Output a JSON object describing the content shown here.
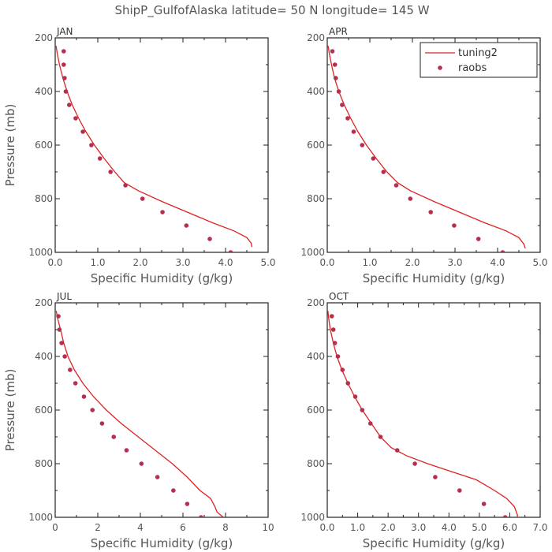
{
  "figure_title": "ShipP_GulfofAlaska   latitude= 50 N longitude= 145 W",
  "colors": {
    "model": "#dd2222",
    "obs": "#b5304f",
    "axis": "#222222",
    "text": "#555555"
  },
  "legend": {
    "line_label": "tuning2",
    "marker_label": "raobs",
    "placement": "top-right of APR panel"
  },
  "chart_data": [
    {
      "type": "line",
      "panel": "JAN",
      "xlabel": "Specific Humidity (g/kg)",
      "ylabel": "Pressure (mb)",
      "xlim": [
        0,
        5
      ],
      "ylim": [
        1000,
        200
      ],
      "y_inverted": true,
      "xticks": [
        0,
        1,
        2,
        3,
        4,
        5
      ],
      "xtick_labels": [
        "0.0",
        "1.0",
        "2.0",
        "3.0",
        "4.0",
        "5.0"
      ],
      "yticks": [
        200,
        400,
        600,
        800,
        1000
      ],
      "ytick_labels": [
        "200",
        "400",
        "600",
        "800",
        "1000"
      ],
      "series": [
        {
          "name": "tuning2",
          "kind": "line",
          "x": [
            0.02,
            0.05,
            0.1,
            0.18,
            0.28,
            0.4,
            0.55,
            0.72,
            0.92,
            1.15,
            1.4,
            1.62,
            1.95,
            2.5,
            3.1,
            3.7,
            4.2,
            4.5,
            4.6,
            4.62
          ],
          "y": [
            230,
            260,
            300,
            350,
            400,
            450,
            500,
            550,
            600,
            650,
            700,
            740,
            770,
            810,
            850,
            890,
            920,
            945,
            965,
            980
          ]
        },
        {
          "name": "raobs",
          "kind": "scatter",
          "x": [
            0.2,
            0.2,
            0.22,
            0.25,
            0.33,
            0.48,
            0.65,
            0.85,
            1.05,
            1.3,
            1.65,
            2.05,
            2.52,
            3.08,
            3.63,
            4.12
          ],
          "y": [
            250,
            300,
            350,
            400,
            450,
            500,
            550,
            600,
            650,
            700,
            750,
            800,
            850,
            900,
            950,
            1000
          ]
        }
      ]
    },
    {
      "type": "line",
      "panel": "APR",
      "xlabel": "Specific Humidity (g/kg)",
      "ylabel": "",
      "xlim": [
        0,
        5
      ],
      "ylim": [
        1000,
        200
      ],
      "y_inverted": true,
      "xticks": [
        0,
        1,
        2,
        3,
        4,
        5
      ],
      "xtick_labels": [
        "0.0",
        "1.0",
        "2.0",
        "3.0",
        "4.0",
        "5.0"
      ],
      "yticks": [
        200,
        400,
        600,
        800,
        1000
      ],
      "ytick_labels": [
        "200",
        "400",
        "600",
        "800",
        "1000"
      ],
      "series": [
        {
          "name": "tuning2",
          "kind": "line",
          "x": [
            0.02,
            0.05,
            0.1,
            0.17,
            0.27,
            0.4,
            0.55,
            0.72,
            0.92,
            1.15,
            1.4,
            1.65,
            1.95,
            2.5,
            3.1,
            3.7,
            4.2,
            4.5,
            4.62,
            4.65
          ],
          "y": [
            230,
            260,
            300,
            350,
            400,
            450,
            500,
            550,
            600,
            650,
            700,
            740,
            770,
            810,
            850,
            890,
            920,
            945,
            970,
            985
          ]
        },
        {
          "name": "raobs",
          "kind": "scatter",
          "x": [
            0.12,
            0.18,
            0.2,
            0.27,
            0.35,
            0.48,
            0.62,
            0.82,
            1.08,
            1.32,
            1.62,
            1.95,
            2.43,
            2.98,
            3.55,
            4.12
          ],
          "y": [
            250,
            300,
            350,
            400,
            450,
            500,
            550,
            600,
            650,
            700,
            750,
            800,
            850,
            900,
            950,
            1000
          ]
        }
      ]
    },
    {
      "type": "line",
      "panel": "JUL",
      "xlabel": "Specific Humidity (g/kg)",
      "ylabel": "Pressure (mb)",
      "xlim": [
        0,
        10
      ],
      "ylim": [
        1000,
        200
      ],
      "y_inverted": true,
      "xticks": [
        0,
        2,
        4,
        6,
        8,
        10
      ],
      "xtick_labels": [
        "0",
        "2",
        "4",
        "6",
        "8",
        "10"
      ],
      "yticks": [
        200,
        400,
        600,
        800,
        1000
      ],
      "ytick_labels": [
        "200",
        "400",
        "600",
        "800",
        "1000"
      ],
      "series": [
        {
          "name": "tuning2",
          "kind": "line",
          "x": [
            0.05,
            0.12,
            0.25,
            0.4,
            0.6,
            0.9,
            1.3,
            1.8,
            2.4,
            3.1,
            3.9,
            4.7,
            5.5,
            6.2,
            6.8,
            7.3,
            7.5,
            7.6,
            7.9,
            8.0
          ],
          "y": [
            230,
            260,
            300,
            350,
            400,
            450,
            500,
            550,
            600,
            650,
            700,
            750,
            800,
            850,
            900,
            930,
            960,
            980,
            1000,
            1015
          ]
        },
        {
          "name": "raobs",
          "kind": "scatter",
          "x": [
            0.15,
            0.2,
            0.3,
            0.45,
            0.7,
            0.95,
            1.35,
            1.75,
            2.2,
            2.75,
            3.35,
            4.05,
            4.8,
            5.55,
            6.2,
            6.85
          ],
          "y": [
            250,
            300,
            350,
            400,
            450,
            500,
            550,
            600,
            650,
            700,
            750,
            800,
            850,
            900,
            950,
            1000
          ]
        }
      ]
    },
    {
      "type": "line",
      "panel": "OCT",
      "xlabel": "Specific Humidity (g/kg)",
      "ylabel": "",
      "xlim": [
        0,
        7
      ],
      "ylim": [
        1000,
        200
      ],
      "y_inverted": true,
      "xticks": [
        0,
        1,
        2,
        3,
        4,
        5,
        6,
        7
      ],
      "xtick_labels": [
        "0.0",
        "1.0",
        "2.0",
        "3.0",
        "4.0",
        "5.0",
        "6.0",
        "7.0"
      ],
      "yticks": [
        200,
        400,
        600,
        800,
        1000
      ],
      "ytick_labels": [
        "200",
        "400",
        "600",
        "800",
        "1000"
      ],
      "series": [
        {
          "name": "tuning2",
          "kind": "line",
          "x": [
            0.02,
            0.05,
            0.1,
            0.2,
            0.32,
            0.48,
            0.68,
            0.9,
            1.15,
            1.45,
            1.75,
            2.1,
            2.6,
            3.3,
            4.1,
            4.9,
            5.5,
            5.9,
            6.15,
            6.25,
            6.25
          ],
          "y": [
            230,
            260,
            300,
            350,
            400,
            450,
            500,
            550,
            600,
            650,
            700,
            740,
            770,
            800,
            830,
            860,
            900,
            930,
            960,
            990,
            1015
          ]
        },
        {
          "name": "raobs",
          "kind": "scatter",
          "x": [
            0.15,
            0.2,
            0.25,
            0.35,
            0.5,
            0.68,
            0.92,
            1.15,
            1.42,
            1.75,
            2.3,
            2.88,
            3.55,
            4.35,
            5.15,
            5.85
          ],
          "y": [
            250,
            300,
            350,
            400,
            450,
            500,
            550,
            600,
            650,
            700,
            750,
            800,
            850,
            900,
            950,
            1000
          ]
        }
      ]
    }
  ]
}
